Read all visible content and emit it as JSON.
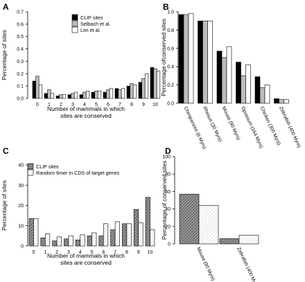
{
  "chart_data": [
    {
      "panel": "A",
      "type": "bar",
      "categories": [
        "0",
        "1",
        "2",
        "3",
        "4",
        "5",
        "6",
        "7",
        "8",
        "9",
        "10"
      ],
      "series": [
        {
          "name": "CLIP sites",
          "color": "#000000",
          "values": [
            0.14,
            0.04,
            0.02,
            0.03,
            0.03,
            0.05,
            0.05,
            0.08,
            0.1,
            0.13,
            0.25
          ]
        },
        {
          "name": "Selbach et al.",
          "color": "#bdbdbd",
          "values": [
            0.18,
            0.07,
            0.03,
            0.04,
            0.05,
            0.06,
            0.07,
            0.07,
            0.12,
            0.16,
            0.24
          ]
        },
        {
          "name": "Lim et al.",
          "color": "#ffffff",
          "values": [
            0.11,
            0.04,
            0.03,
            0.05,
            0.06,
            0.06,
            0.08,
            0.08,
            0.11,
            0.2,
            0.22
          ]
        }
      ],
      "xlabel": "Number of mammals in which\nsites are conserved",
      "ylabel": "Percentage of sites",
      "ylim": [
        0,
        0.7
      ],
      "yticks": [
        "0.0",
        "0.1",
        "0.2",
        "0.3",
        "0.4",
        "0.5",
        "0.6",
        "0.7"
      ],
      "legend": "top-center"
    },
    {
      "panel": "B",
      "type": "bar",
      "categories": [
        "Chimpanzee (6 Myrs)",
        "Rhesus (30 Myrs)",
        "Mouse (90 Myrs)",
        "Opossum (164 Myrs)",
        "Chicken (300 Myrs)",
        "Zebrafish (400 Myrs)"
      ],
      "series": [
        {
          "color": "#000000",
          "values": [
            0.97,
            0.9,
            0.57,
            0.45,
            0.29,
            0.05
          ]
        },
        {
          "color": "#bdbdbd",
          "values": [
            0.97,
            0.9,
            0.5,
            0.3,
            0.17,
            0.04
          ]
        },
        {
          "color": "#ffffff",
          "values": [
            0.98,
            0.9,
            0.62,
            0.42,
            0.2,
            0.04
          ]
        }
      ],
      "ylabel": "Percentage ofconserved sites",
      "ylim": [
        0,
        1.0
      ],
      "yticks": [
        "0.0",
        "0.2",
        "0.4",
        "0.6",
        "0.8",
        "1.0"
      ]
    },
    {
      "panel": "C",
      "type": "bar",
      "categories": [
        "0",
        "1",
        "2",
        "3",
        "4",
        "5",
        "6",
        "7",
        "8",
        "9",
        "10"
      ],
      "series": [
        {
          "name": "CLIP sites",
          "color": "#8c8c8c",
          "hatch": "dense",
          "values": [
            13.5,
            4,
            2.5,
            3.5,
            3,
            5,
            5,
            8,
            11,
            18,
            24
          ]
        },
        {
          "name": "Random 6mer in CDS of target genes",
          "color": "#ffffff",
          "hatch": "light",
          "values": [
            13.5,
            6,
            4.5,
            5,
            5.5,
            6.5,
            11,
            12,
            11,
            11.5,
            8
          ]
        }
      ],
      "xlabel": "Number of mammals in which\nsites are conserved",
      "ylabel": "Percentage of sites",
      "ylim": [
        0,
        40
      ],
      "yticks": [
        "0",
        "10",
        "20",
        "30",
        "40"
      ],
      "legend": "top-left"
    },
    {
      "panel": "D",
      "type": "bar",
      "categories": [
        "Mouse (90 Myrs)",
        "Zebrafish (400 Myrs)"
      ],
      "series": [
        {
          "color": "#8c8c8c",
          "hatch": "dense",
          "values": [
            57,
            6
          ]
        },
        {
          "color": "#ffffff",
          "hatch": "light",
          "values": [
            44,
            10
          ]
        }
      ],
      "ylabel": "Percentage of conserved sites",
      "ylim": [
        0,
        100
      ],
      "yticks": [
        "0",
        "20",
        "40",
        "60",
        "80",
        "100"
      ]
    }
  ]
}
